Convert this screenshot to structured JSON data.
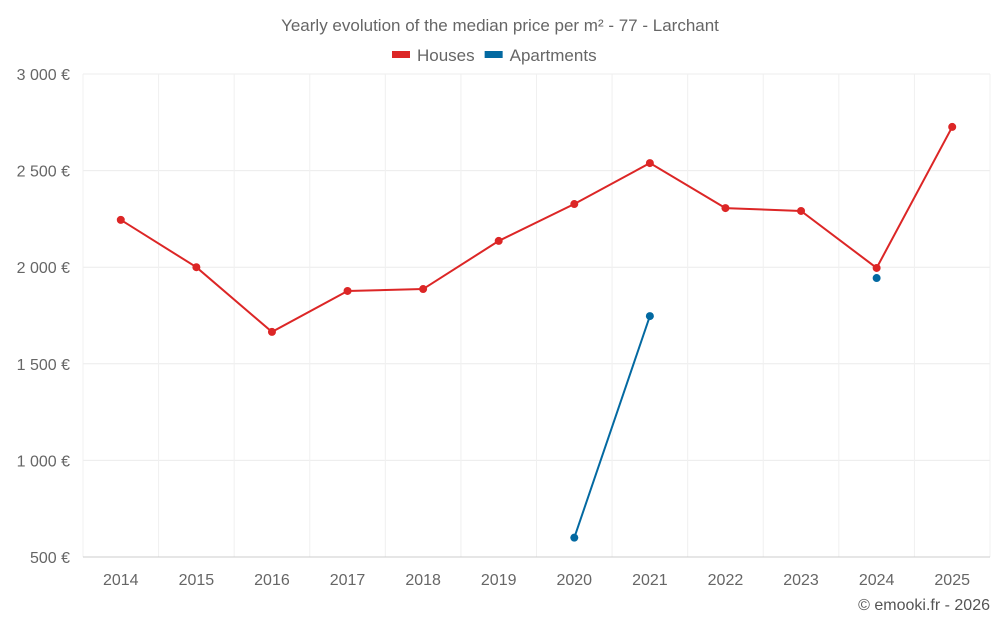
{
  "chart_data": {
    "type": "line",
    "title": "Yearly evolution of the median price per m² - 77 - Larchant",
    "categories": [
      "2014",
      "2015",
      "2016",
      "2017",
      "2018",
      "2019",
      "2020",
      "2021",
      "2022",
      "2023",
      "2024",
      "2025"
    ],
    "yticks": [
      "500 €",
      "1 000 €",
      "1 500 €",
      "2 000 €",
      "2 500 €",
      "3 000 €"
    ],
    "ytick_values": [
      500,
      1000,
      1500,
      2000,
      2500,
      3000
    ],
    "ylim": [
      500,
      3000
    ],
    "legend_position": "top-center",
    "grid": true,
    "series": [
      {
        "name": "Houses",
        "color": "#dc2626",
        "values": [
          2245,
          2000,
          1665,
          1877,
          1887,
          2136,
          2327,
          2539,
          2306,
          2291,
          1996,
          2726
        ]
      },
      {
        "name": "Apartments",
        "color": "#0369a1",
        "values": [
          null,
          null,
          null,
          null,
          null,
          null,
          600,
          1747,
          null,
          null,
          1944,
          null
        ]
      }
    ],
    "credit": "© emooki.fr - 2026"
  }
}
